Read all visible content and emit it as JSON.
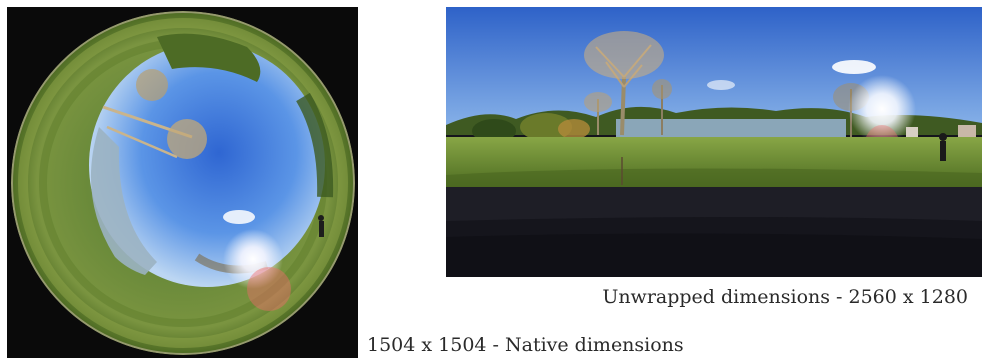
{
  "images": {
    "fisheye": {
      "icon": "fisheye-photo-icon",
      "caption": "1504 x 1504 - Native dimensions"
    },
    "unwrapped": {
      "icon": "panorama-photo-icon",
      "caption": "Unwrapped dimensions - 2560 x 1280"
    }
  },
  "colors": {
    "sky": "#3f7fd9",
    "grass": "#6f8f34",
    "water": "#8aa6b8",
    "dark_fill": "#15151c",
    "frame": "#0a0a0a"
  }
}
